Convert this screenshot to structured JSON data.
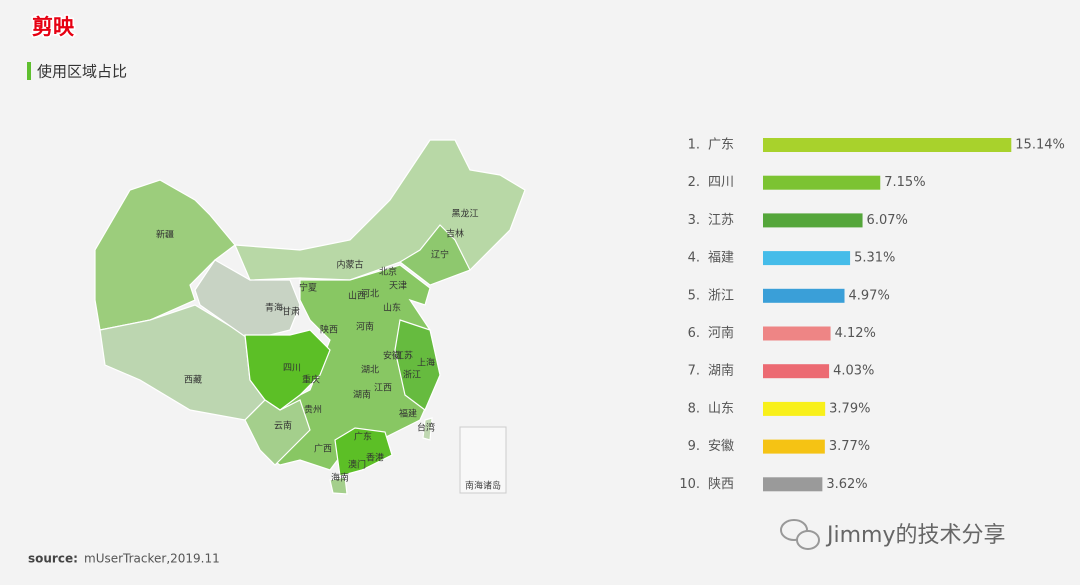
{
  "header": {
    "brand": "剪映",
    "subtitle": "使用区域占比"
  },
  "map": {
    "labels": [
      "新疆",
      "西藏",
      "青海",
      "甘肃",
      "宁夏",
      "内蒙古",
      "黑龙江",
      "吉林",
      "辽宁",
      "北京",
      "天津",
      "河北",
      "山西",
      "山东",
      "陕西",
      "河南",
      "四川",
      "重庆",
      "湖北",
      "安徽",
      "江苏",
      "上海",
      "浙江",
      "湖南",
      "江西",
      "贵州",
      "云南",
      "广西",
      "广东",
      "福建",
      "台湾",
      "香港",
      "澳门",
      "海南"
    ],
    "inset_label": "南海诸岛"
  },
  "chart_data": {
    "type": "bar",
    "rank_labels": [
      "1.",
      "2.",
      "3.",
      "4.",
      "5.",
      "6.",
      "7.",
      "8.",
      "9.",
      "10."
    ],
    "categories": [
      "广东",
      "四川",
      "江苏",
      "福建",
      "浙江",
      "河南",
      "湖南",
      "山东",
      "安徽",
      "陕西"
    ],
    "values": [
      15.14,
      7.15,
      6.07,
      5.31,
      4.97,
      4.12,
      4.03,
      3.79,
      3.77,
      3.62
    ],
    "value_labels": [
      "15.14%",
      "7.15%",
      "6.07%",
      "5.31%",
      "4.97%",
      "4.12%",
      "4.03%",
      "3.79%",
      "3.77%",
      "3.62%"
    ],
    "colors": [
      "#a8d22c",
      "#7cc332",
      "#54a63a",
      "#45bce9",
      "#3a9fd8",
      "#ee8585",
      "#ec6a72",
      "#f8f01a",
      "#f5c314",
      "#9a9a9a"
    ]
  },
  "footer": {
    "source_label": "source:",
    "source": "mUserTracker,2019.11",
    "watermark": "Jimmy的技术分享"
  }
}
